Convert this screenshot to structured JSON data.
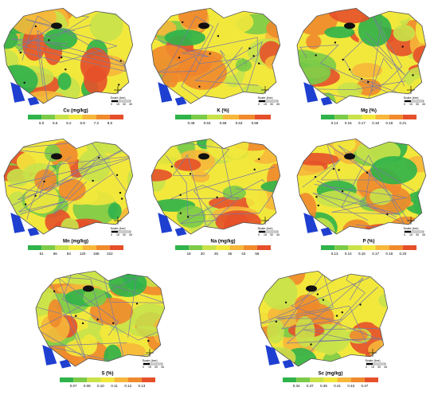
{
  "maps": [
    {
      "title": "Cu (mg/kg)",
      "legend_labels": [
        "5.0",
        "5.6",
        "6.2",
        "6.8",
        "7.3",
        "8.5"
      ],
      "scale_title": "Scale (km)",
      "scale_labels": [
        "0",
        "15",
        "30",
        "45"
      ]
    },
    {
      "title": "K (%)",
      "legend_labels": [
        "0.48",
        "0.53",
        "0.58",
        "0.63",
        "0.68"
      ],
      "scale_title": "Scale (km)",
      "scale_labels": [
        "0",
        "15",
        "30",
        "45"
      ]
    },
    {
      "title": "Mg (%)",
      "legend_labels": [
        "0.14",
        "0.16",
        "0.17",
        "0.18",
        "0.19",
        "0.21"
      ],
      "scale_title": "Scale (km)",
      "scale_labels": [
        "0",
        "15",
        "30",
        "45"
      ]
    },
    {
      "title": "Mn (mg/kg)",
      "legend_labels": [
        "51",
        "66",
        "84",
        "120",
        "168",
        "222"
      ],
      "scale_title": "Scale (km)",
      "scale_labels": [
        "0",
        "15",
        "30",
        "45"
      ]
    },
    {
      "title": "Na (mg/kg)",
      "legend_labels": [
        "16",
        "20",
        "25",
        "35",
        "43",
        "56"
      ],
      "scale_title": "Scale (km)",
      "scale_labels": [
        "0",
        "15",
        "30",
        "45"
      ]
    },
    {
      "title": "P (%)",
      "legend_labels": [
        "0.13",
        "0.14",
        "0.16",
        "0.17",
        "0.18",
        "0.20"
      ],
      "scale_title": "Scale (km)",
      "scale_labels": [
        "0",
        "15",
        "30",
        "45"
      ]
    },
    {
      "title": "S (%)",
      "legend_labels": [
        "0.07",
        "0.08",
        "0.10",
        "0.11",
        "0.12",
        "0.13"
      ],
      "scale_title": "Scale (km)",
      "scale_labels": [
        "0",
        "15",
        "30",
        "45"
      ]
    },
    {
      "title": "Sc (mg/kg)",
      "legend_labels": [
        "0.34",
        "0.37",
        "0.39",
        "0.41",
        "0.43",
        "0.47"
      ],
      "scale_title": "Scale (km)",
      "scale_labels": [
        "0",
        "15",
        "30",
        "45"
      ]
    }
  ]
}
